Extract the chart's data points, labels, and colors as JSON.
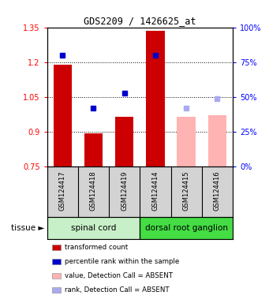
{
  "title": "GDS2209 / 1426625_at",
  "samples": [
    "GSM124417",
    "GSM124418",
    "GSM124419",
    "GSM124414",
    "GSM124415",
    "GSM124416"
  ],
  "bar_values": [
    1.19,
    0.895,
    0.965,
    1.335,
    0.965,
    0.97
  ],
  "bar_colors": [
    "#cc0000",
    "#cc0000",
    "#cc0000",
    "#cc0000",
    "#ffb3b3",
    "#ffb3b3"
  ],
  "rank_pct": [
    80,
    42,
    53,
    80,
    42,
    49
  ],
  "rank_colors": [
    "#0000cc",
    "#0000cc",
    "#0000cc",
    "#0000cc",
    "#aaaaee",
    "#aaaaee"
  ],
  "ylim_left": [
    0.75,
    1.35
  ],
  "ylim_right": [
    0,
    100
  ],
  "yticks_left": [
    0.75,
    0.9,
    1.05,
    1.2,
    1.35
  ],
  "yticks_right": [
    0,
    25,
    50,
    75,
    100
  ],
  "ytick_labels_left": [
    "0.75",
    "0.9",
    "1.05",
    "1.2",
    "1.35"
  ],
  "ytick_labels_right": [
    "0%",
    "25%",
    "50%",
    "75%",
    "100%"
  ],
  "tissue_groups": [
    {
      "label": "spinal cord",
      "indices": [
        0,
        1,
        2
      ],
      "color": "#c8f0c8"
    },
    {
      "label": "dorsal root ganglion",
      "indices": [
        3,
        4,
        5
      ],
      "color": "#44dd44"
    }
  ],
  "legend_items": [
    {
      "label": "transformed count",
      "color": "#cc0000"
    },
    {
      "label": "percentile rank within the sample",
      "color": "#0000cc"
    },
    {
      "label": "value, Detection Call = ABSENT",
      "color": "#ffb3b3"
    },
    {
      "label": "rank, Detection Call = ABSENT",
      "color": "#aaaaee"
    }
  ],
  "tissue_label": "tissue",
  "bar_bottom": 0.75,
  "background_color": "#ffffff",
  "gridline_yticks": [
    0.9,
    1.05,
    1.2
  ],
  "xticklabel_bg": "#d3d3d3",
  "bar_width": 0.6
}
